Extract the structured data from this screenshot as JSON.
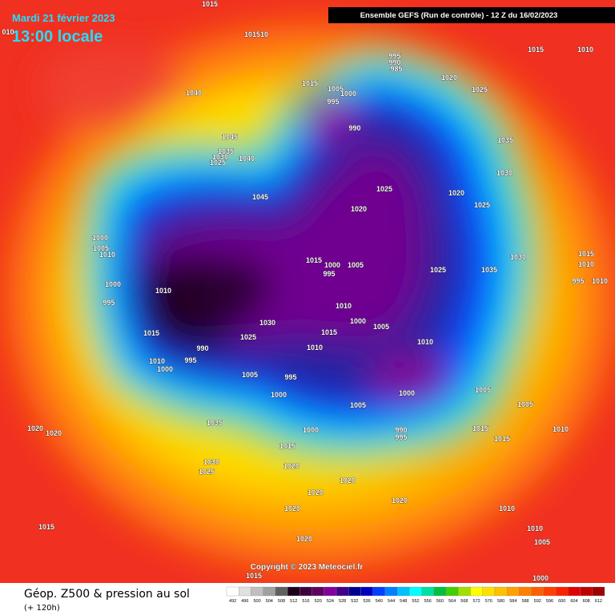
{
  "header": {
    "date": "Mardi 21 février 2023",
    "time": "13:00 locale",
    "model": "Ensemble GEFS  (Run de contrôle)  -  12 Z du 16/02/2023"
  },
  "footer": {
    "copyright": "Copyright © 2023 Meteociel.fr",
    "legend_title": "Géop. Z500 & pression au sol",
    "lead": "(+ 120h)"
  },
  "colorbar": {
    "values": [
      492,
      496,
      500,
      504,
      508,
      512,
      516,
      520,
      524,
      528,
      532,
      536,
      540,
      544,
      548,
      552,
      556,
      560,
      564,
      568,
      572,
      576,
      580,
      584,
      588,
      592,
      596,
      600,
      604,
      608,
      612
    ],
    "colors": [
      "#ffffff",
      "#e0e0e0",
      "#c0c0c0",
      "#a0a0a0",
      "#606060",
      "#1a001a",
      "#3d003d",
      "#600060",
      "#8000a0",
      "#40008a",
      "#000090",
      "#0000c0",
      "#0040ff",
      "#0080ff",
      "#00c0ff",
      "#00ffff",
      "#00e0a0",
      "#00c040",
      "#40d000",
      "#a0e000",
      "#ffff00",
      "#ffe000",
      "#ffc000",
      "#ffa000",
      "#ff8000",
      "#ff6000",
      "#ff4000",
      "#ff2000",
      "#e00000",
      "#c00000",
      "#a00000"
    ]
  },
  "isobar_labels": [
    "1015",
    "1040",
    "1045",
    "1035",
    "1030",
    "1025",
    "1040",
    "1045",
    "101510",
    "995",
    "990",
    "985",
    "1015",
    "1005",
    "1000",
    "995",
    "990",
    "1020",
    "1025",
    "1015",
    "1010",
    "1035",
    "1030",
    "1020",
    "1025",
    "1025",
    "1020",
    "1030",
    "1035",
    "1025",
    "1000",
    "1005",
    "1010",
    "1000",
    "995",
    "1010",
    "1015",
    "1000",
    "1005",
    "995",
    "1010",
    "1000",
    "1005",
    "1030",
    "1025",
    "1015",
    "1010",
    "1015",
    "990",
    "995",
    "1010",
    "1000",
    "1005",
    "995",
    "1000",
    "1010",
    "1000",
    "1005",
    "990",
    "995",
    "1005",
    "1005",
    "1000",
    "1035",
    "1015",
    "1020",
    "1030",
    "1025",
    "1015",
    "1015",
    "1010",
    "1020",
    "1020",
    "1020",
    "1020",
    "1020",
    "1020",
    "1010",
    "1015",
    "1020",
    "1010",
    "1005",
    "1010",
    "1015",
    "995",
    "1010",
    "1015",
    "1000",
    "010"
  ]
}
